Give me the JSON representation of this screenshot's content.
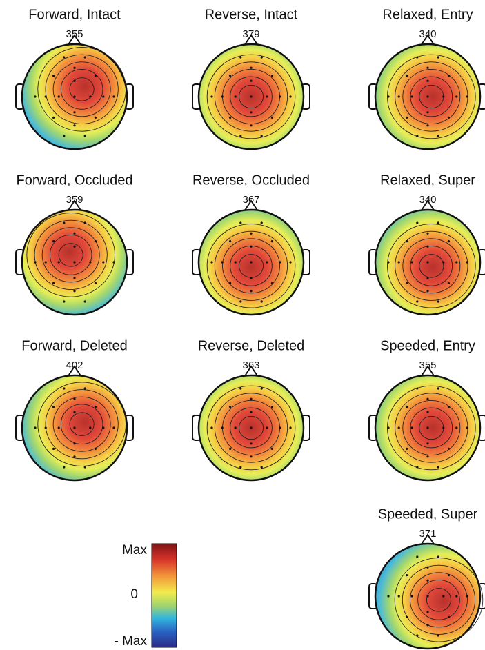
{
  "panels": [
    {
      "title": "Forward, Intact",
      "value": "355"
    },
    {
      "title": "Reverse, Intact",
      "value": "379"
    },
    {
      "title": "Relaxed, Entry",
      "value": "340"
    },
    {
      "title": "Forward, Occluded",
      "value": "359"
    },
    {
      "title": "Reverse, Occluded",
      "value": "367"
    },
    {
      "title": "Relaxed, Super",
      "value": "340"
    },
    {
      "title": "Forward, Deleted",
      "value": "402"
    },
    {
      "title": "Reverse, Deleted",
      "value": "363"
    },
    {
      "title": "Speeded, Entry",
      "value": "355"
    },
    {
      "title": "Speeded, Super",
      "value": "371"
    }
  ],
  "colorbar": {
    "top": "Max",
    "middle": "0",
    "bottom": "- Max"
  }
}
